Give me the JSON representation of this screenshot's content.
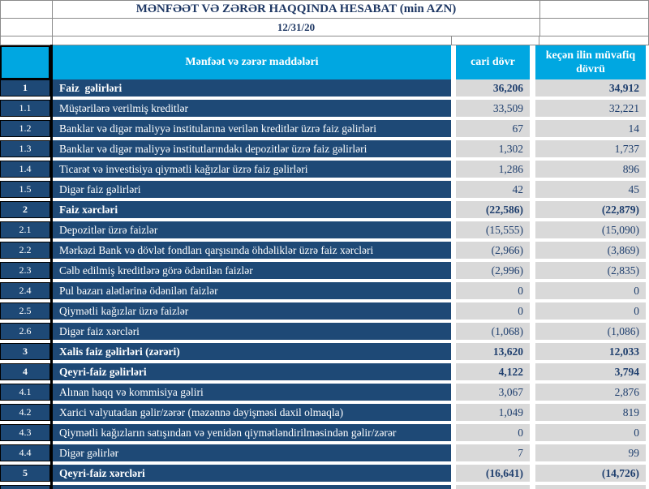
{
  "header": {
    "title": "MƏNFƏƏT VƏ ZƏRƏR HAQQINDA HESABAT (min AZN)",
    "date": "12/31/20"
  },
  "columns": {
    "items_label": "Mənfəət və zərər maddələri",
    "current_label": "cari dövr",
    "previous_label": "keçən ilin müvafiq dövrü"
  },
  "colors": {
    "header_blue": "#00a7e1",
    "row_navy": "#1e4976",
    "number_text": "#1f3f6e",
    "title_text": "#1f3864",
    "value_cell_gray": "#d9d9d9",
    "gridline": "#8a8a8a"
  },
  "rows": [
    {
      "no": "1",
      "label": "Faiz  gəlirləri",
      "current": "36,206",
      "previous": "34,912",
      "bold": true
    },
    {
      "no": "1.1",
      "label": "Müştərilərə verilmiş kreditlər",
      "current": "33,509",
      "previous": "32,221",
      "bold": false
    },
    {
      "no": "1.2",
      "label": "Banklar və digər maliyyə institularına verilən kreditlər üzrə faiz gəlirləri",
      "current": "67",
      "previous": "14",
      "bold": false
    },
    {
      "no": "1.3",
      "label": "Banklar və digər maliyyə institutlarındakı depozitlər üzrə faiz gəlirləri",
      "current": "1,302",
      "previous": "1,737",
      "bold": false
    },
    {
      "no": "1.4",
      "label": "Ticarət və investisiya qiymətli kağızlar üzrə faiz gəlirləri",
      "current": "1,286",
      "previous": "896",
      "bold": false
    },
    {
      "no": "1.5",
      "label": "Digər faiz gəlirləri",
      "current": "42",
      "previous": "45",
      "bold": false
    },
    {
      "no": "2",
      "label": "Faiz xərcləri",
      "current": "(22,586)",
      "previous": "(22,879)",
      "bold": true
    },
    {
      "no": "2.1",
      "label": "Depozitlər üzrə faizlər",
      "current": "(15,555)",
      "previous": "(15,090)",
      "bold": false
    },
    {
      "no": "2.2",
      "label": "Mərkəzi Bank və dövlət fondları qarşısında öhdəliklər üzrə faiz xərcləri",
      "current": "(2,966)",
      "previous": "(3,869)",
      "bold": false
    },
    {
      "no": "2.3",
      "label": "Cəlb edilmiş kreditlərə görə ödənilən faizlər",
      "current": "(2,996)",
      "previous": "(2,835)",
      "bold": false
    },
    {
      "no": "2.4",
      "label": "Pul bazarı alətlərinə ödənilən faizlər",
      "current": "0",
      "previous": "0",
      "bold": false
    },
    {
      "no": "2.5",
      "label": "Qiymətli kağızlar üzrə faizlər",
      "current": "0",
      "previous": "0",
      "bold": false
    },
    {
      "no": "2.6",
      "label": "Digər faiz xərcləri",
      "current": "(1,068)",
      "previous": "(1,086)",
      "bold": false
    },
    {
      "no": "3",
      "label": "Xalis faiz gəlirləri (zərəri)",
      "current": "13,620",
      "previous": "12,033",
      "bold": true
    },
    {
      "no": "4",
      "label": "Qeyri-faiz gəlirləri",
      "current": "4,122",
      "previous": "3,794",
      "bold": true
    },
    {
      "no": "4.1",
      "label": "Alınan haqq və kommisiya gəliri",
      "current": "3,067",
      "previous": "2,876",
      "bold": false
    },
    {
      "no": "4.2",
      "label": "Xarici valyutadan gəlir/zərər (məzənnə dəyişməsi daxil olmaqla)",
      "current": "1,049",
      "previous": "819",
      "bold": false
    },
    {
      "no": "4.3",
      "label": "Qiymətli kağızların satışından və yenidən qiymətləndirilməsindən gəlir/zərər",
      "current": "0",
      "previous": "0",
      "bold": false
    },
    {
      "no": "4.4",
      "label": "Digər gəlirlər",
      "current": "7",
      "previous": "99",
      "bold": false
    },
    {
      "no": "5",
      "label": "Qeyri-faiz xərcləri",
      "current": "(16,641)",
      "previous": "(14,726)",
      "bold": true
    }
  ]
}
